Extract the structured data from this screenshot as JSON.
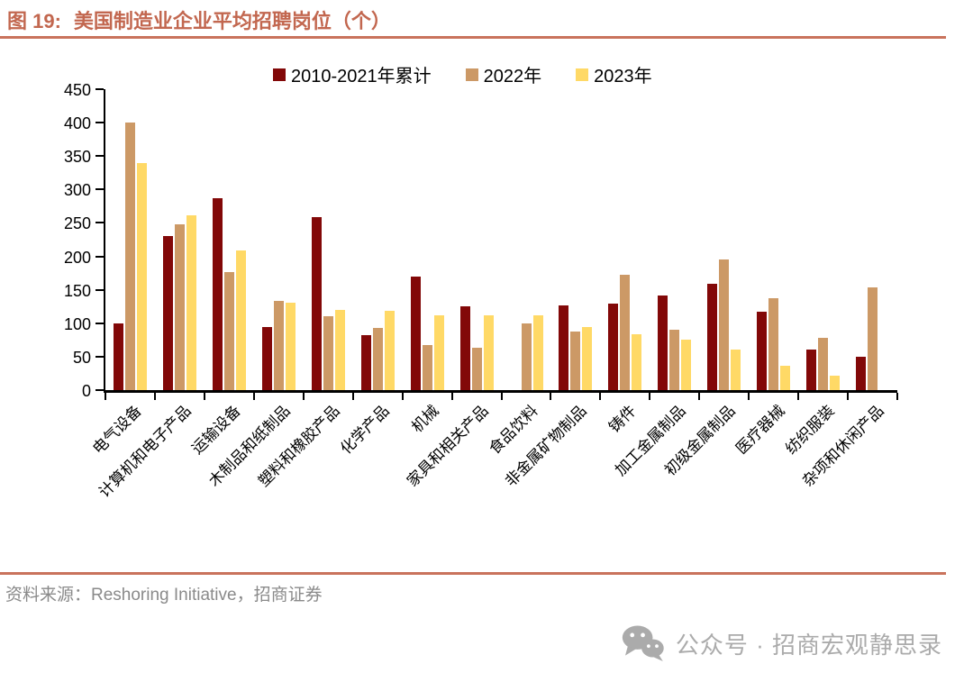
{
  "title": {
    "prefix": "图 19:",
    "text": "美国制造业企业平均招聘岗位（个）"
  },
  "colors": {
    "accent": "#C2674F",
    "rule": "#C9735C",
    "series1": "#820808",
    "series2": "#CC9966",
    "series3": "#FFD966",
    "axis_text": "#000000",
    "footer_text": "#8A8A8A",
    "watermark": "#ABABAB"
  },
  "chart_data": {
    "type": "bar",
    "title": "美国制造业企业平均招聘岗位（个）",
    "categories": [
      "电气设备",
      "计算机和电子产品",
      "运输设备",
      "木制品和纸制品",
      "塑料和橡胶产品",
      "化学产品",
      "机械",
      "家具和相关产品",
      "食品饮料",
      "非金属矿物制品",
      "铸件",
      "加工金属制品",
      "初级金属制品",
      "医疗器械",
      "纺织服装",
      "杂项和休闲产品"
    ],
    "series": [
      {
        "name": "2010-2021年累计",
        "color": "#820808",
        "values": [
          100,
          230,
          287,
          95,
          259,
          82,
          170,
          125,
          0,
          127,
          129,
          141,
          159,
          117,
          60,
          50
        ]
      },
      {
        "name": "2022年",
        "color": "#CC9966",
        "values": [
          400,
          248,
          177,
          134,
          110,
          93,
          68,
          63,
          100,
          87,
          172,
          90,
          196,
          137,
          78,
          154
        ]
      },
      {
        "name": "2023年",
        "color": "#FFD966",
        "values": [
          340,
          262,
          209,
          131,
          120,
          118,
          112,
          112,
          112,
          94,
          84,
          75,
          61,
          37,
          22,
          0
        ]
      }
    ],
    "ylim": [
      0,
      450
    ],
    "ytick_step": 50,
    "grid": false,
    "legend_position": "top",
    "xlabel": "",
    "ylabel": ""
  },
  "footer": {
    "source": "资料来源：Reshoring Initiative，招商证券"
  },
  "watermark": {
    "icon": "wechat-icon",
    "text": "公众号 · 招商宏观静思录"
  }
}
